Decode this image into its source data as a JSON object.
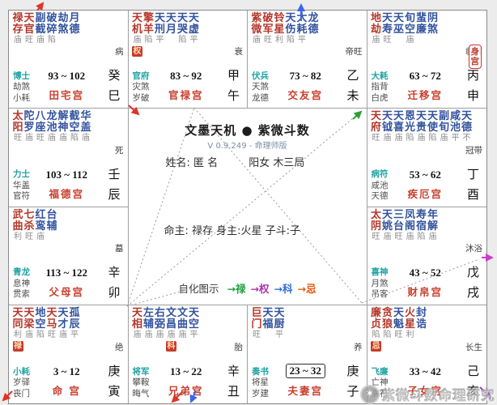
{
  "app": {
    "title": "文墨天机 ● 紫微斗数",
    "version": "V 0.9.249 - 命理师版"
  },
  "person": {
    "name_line": "姓名: 匿 名",
    "gender_bureau": "阳女 木三局",
    "masters": "命主: 禄存 身主:火星 子斗:子"
  },
  "legend": {
    "label": "自化图示",
    "items": [
      {
        "text": "→禄",
        "color": "#1d9e3f"
      },
      {
        "text": "→权",
        "color": "#ab32ab"
      },
      {
        "text": "→科",
        "color": "#2b6fd8"
      },
      {
        "text": "→忌",
        "color": "#e05a10"
      }
    ]
  },
  "watermark": {
    "text": "紫微斗数命理研究",
    "logo": "✶"
  },
  "colors": {
    "star_main": "#b5372a",
    "star_minor": "#32539e",
    "brightness": "#8b8b8b",
    "palace_name": "#c8402e",
    "god_primary": "#1fa3a3",
    "badge_bg": "#c63b2b",
    "badge_text": "#ffe3b8",
    "body_badge": "#c3392b"
  },
  "palaces": [
    {
      "id": "si",
      "grid": {
        "col": 0,
        "row": 0
      },
      "stars": [
        [
          "禄",
          "存",
          "庙",
          "r"
        ],
        [
          "天",
          "官",
          "旺",
          "r"
        ],
        [
          "副",
          "截",
          "庙",
          "b"
        ],
        [
          "破",
          "碎",
          "陷",
          "b"
        ],
        [
          "劫",
          "煞",
          "",
          "b"
        ],
        [
          "月",
          "德",
          "",
          "b"
        ]
      ],
      "badge": null,
      "body_badge": null,
      "gods": [
        "博士",
        "劫煞",
        "小耗"
      ],
      "ages": "93 ~ 102",
      "boxed": false,
      "palace": "田宅宫",
      "stage": "病",
      "stem": "癸",
      "branch": "巳"
    },
    {
      "id": "wu",
      "grid": {
        "col": 1,
        "row": 0
      },
      "stars": [
        [
          "天",
          "机",
          "庙",
          "r"
        ],
        [
          "擎",
          "羊",
          "陷",
          "r"
        ],
        [
          "天",
          "刑",
          "平",
          "b"
        ],
        [
          "天",
          "月",
          "",
          "b"
        ],
        [
          "天",
          "哭",
          "陷",
          "b"
        ],
        [
          "天",
          "虚",
          "平",
          "b"
        ]
      ],
      "badge": {
        "text": "权",
        "col": 0
      },
      "body_badge": null,
      "gods": [
        "官府",
        "灾煞",
        "岁破"
      ],
      "ages": "83 ~ 92",
      "boxed": false,
      "palace": "官禄宫",
      "stage": "衰",
      "stem": "甲",
      "branch": "午"
    },
    {
      "id": "wei",
      "grid": {
        "col": 2,
        "row": 0
      },
      "stars": [
        [
          "紫",
          "微",
          "庙",
          "r"
        ],
        [
          "破",
          "军",
          "旺",
          "r"
        ],
        [
          "铃",
          "星",
          "利",
          "r"
        ],
        [
          "天",
          "伤",
          "陷",
          "b"
        ],
        [
          "大",
          "耗",
          "平",
          "b"
        ],
        [
          "龙",
          "德",
          "",
          "b"
        ]
      ],
      "badge": null,
      "body_badge": null,
      "gods": [
        "伏兵",
        "天煞",
        "龙德"
      ],
      "ages": "73 ~ 82",
      "boxed": false,
      "palace": "交友宫",
      "stage": "帝旺",
      "stem": "乙",
      "branch": "未"
    },
    {
      "id": "shen",
      "grid": {
        "col": 3,
        "row": 0
      },
      "stars": [
        [
          "地",
          "劫",
          "庙",
          "r"
        ],
        [
          "天",
          "寿",
          "旺",
          "b"
        ],
        [
          "天",
          "巫",
          "",
          "b"
        ],
        [
          "旬",
          "空",
          "庙",
          "b"
        ],
        [
          "蜚",
          "廉",
          "",
          "b"
        ],
        [
          "阴",
          "煞",
          "",
          "b"
        ]
      ],
      "badge": null,
      "body_badge": "身宫",
      "gods": [
        "大耗",
        "指背",
        "白虎"
      ],
      "ages": "63 ~ 72",
      "boxed": false,
      "palace": "迁移宫",
      "stage": "临官",
      "stem": "丙",
      "branch": "申"
    },
    {
      "id": "chen",
      "grid": {
        "col": 0,
        "row": 1
      },
      "stars": [
        [
          "太",
          "阳",
          "旺",
          "r"
        ],
        [
          "陀",
          "罗",
          "庙",
          "b"
        ],
        [
          "八",
          "座",
          "旺",
          "b"
        ],
        [
          "龙",
          "池",
          "庙",
          "b"
        ],
        [
          "解",
          "神",
          "庙",
          "b"
        ],
        [
          "截",
          "空",
          "陷",
          "b"
        ],
        [
          "华",
          "盖",
          "庙",
          "b"
        ]
      ],
      "badge": null,
      "body_badge": null,
      "gods": [
        "力士",
        "华盖",
        "官符"
      ],
      "ages": "103 ~ 112",
      "boxed": false,
      "palace": "福德宫",
      "stage": "死",
      "stem": "壬",
      "branch": "辰"
    },
    {
      "id": "you",
      "grid": {
        "col": 3,
        "row": 1
      },
      "stars": [
        [
          "天",
          "府",
          "旺",
          "r"
        ],
        [
          "天",
          "钺",
          "庙",
          "b"
        ],
        [
          "天",
          "喜",
          "庙",
          "b"
        ],
        [
          "恩",
          "光",
          "陷",
          "b"
        ],
        [
          "天",
          "贵",
          "庙",
          "b"
        ],
        [
          "天",
          "使",
          "陷",
          "b"
        ],
        [
          "副",
          "旬",
          "庙",
          "b"
        ],
        [
          "咸",
          "池",
          "平",
          "b"
        ],
        [
          "天",
          "德",
          "不",
          "b"
        ]
      ],
      "badge": null,
      "body_badge": null,
      "gods": [
        "病符",
        "咸池",
        "天德"
      ],
      "ages": "53 ~ 62",
      "boxed": false,
      "palace": "疾厄宫",
      "stage": "冠带",
      "stem": "丁",
      "branch": "酉"
    },
    {
      "id": "mao",
      "grid": {
        "col": 0,
        "row": 2
      },
      "stars": [
        [
          "武",
          "曲",
          "利",
          "r"
        ],
        [
          "七",
          "杀",
          "旺",
          "r"
        ],
        [
          "红",
          "鸾",
          "庙",
          "b"
        ],
        [
          "台",
          "辅",
          "",
          "b"
        ]
      ],
      "badge": null,
      "body_badge": null,
      "gods": [
        "青龙",
        "息神",
        "贯索"
      ],
      "ages": "113 ~ 122",
      "boxed": false,
      "palace": "父母宫",
      "stage": "墓",
      "stem": "辛",
      "branch": "卯"
    },
    {
      "id": "xu",
      "grid": {
        "col": 3,
        "row": 2
      },
      "stars": [
        [
          "太",
          "阴",
          "旺",
          "r"
        ],
        [
          "天",
          "姚",
          "庙",
          "b"
        ],
        [
          "三",
          "台",
          "旺",
          "b"
        ],
        [
          "凤",
          "阁",
          "庙",
          "b"
        ],
        [
          "寿",
          "宿",
          "陷",
          "b"
        ],
        [
          "年",
          "解",
          "庙",
          "b"
        ]
      ],
      "badge": null,
      "body_badge": null,
      "gods": [
        "喜神",
        "月煞",
        "吊客"
      ],
      "ages": "43 ~ 52",
      "boxed": false,
      "palace": "财帛宫",
      "stage": "沐浴",
      "stem": "戊",
      "branch": "戌"
    },
    {
      "id": "yin",
      "grid": {
        "col": 0,
        "row": 3
      },
      "stars": [
        [
          "天",
          "同",
          "利",
          "r"
        ],
        [
          "天",
          "梁",
          "庙",
          "r"
        ],
        [
          "地",
          "空",
          "陷",
          "b"
        ],
        [
          "天",
          "马",
          "旺",
          "r"
        ],
        [
          "天",
          "才",
          "庙",
          "b"
        ],
        [
          "孤",
          "辰",
          "平",
          "b"
        ]
      ],
      "badge": {
        "text": "禄",
        "col": 0
      },
      "body_badge": null,
      "gods": [
        "小耗",
        "岁驿",
        "丧门"
      ],
      "ages": "3 ~ 12",
      "boxed": false,
      "palace": "命 宫",
      "stage": "绝",
      "stem": "庚",
      "branch": "寅"
    },
    {
      "id": "chou",
      "grid": {
        "col": 1,
        "row": 3
      },
      "stars": [
        [
          "天",
          "相",
          "庙",
          "r"
        ],
        [
          "左",
          "辅",
          "庙",
          "b"
        ],
        [
          "右",
          "弼",
          "庙",
          "b"
        ],
        [
          "文",
          "昌",
          "庙",
          "b"
        ],
        [
          "文",
          "曲",
          "庙",
          "b"
        ],
        [
          "天",
          "空",
          "平",
          "b"
        ]
      ],
      "badge": {
        "text": "科",
        "col": 3
      },
      "body_badge": null,
      "gods": [
        "将军",
        "攀鞍",
        "晦气"
      ],
      "ages": "13 ~ 22",
      "boxed": false,
      "palace": "兄弟宫",
      "stage": "胎",
      "stem": "辛",
      "branch": "丑"
    },
    {
      "id": "zi",
      "grid": {
        "col": 2,
        "row": 3
      },
      "stars": [
        [
          "巨",
          "门",
          "旺",
          "r"
        ],
        [
          "天",
          "福",
          "",
          "b"
        ],
        [
          "天",
          "厨",
          "平",
          "b"
        ]
      ],
      "badge": null,
      "body_badge": null,
      "gods": [
        "奏书",
        "将星",
        "岁建"
      ],
      "ages": "23 ~ 32",
      "boxed": true,
      "palace": "夫妻宫",
      "stage": "养",
      "stem": "庚",
      "branch": "子"
    },
    {
      "id": "hai",
      "grid": {
        "col": 3,
        "row": 3
      },
      "stars": [
        [
          "廉",
          "贞",
          "陷",
          "r"
        ],
        [
          "贪",
          "狼",
          "陷",
          "r"
        ],
        [
          "天",
          "魁",
          "旺",
          "b"
        ],
        [
          "火",
          "星",
          "利",
          "r"
        ],
        [
          "封",
          "诰",
          "",
          "b"
        ]
      ],
      "badge": {
        "text": "忌",
        "col": 0
      },
      "body_badge": null,
      "gods": [
        "飞廉",
        "亡神",
        "病符"
      ],
      "ages": "33 ~ 42",
      "boxed": false,
      "palace": "子女宫",
      "stage": "长生",
      "stem": "己",
      "branch": "亥"
    }
  ]
}
